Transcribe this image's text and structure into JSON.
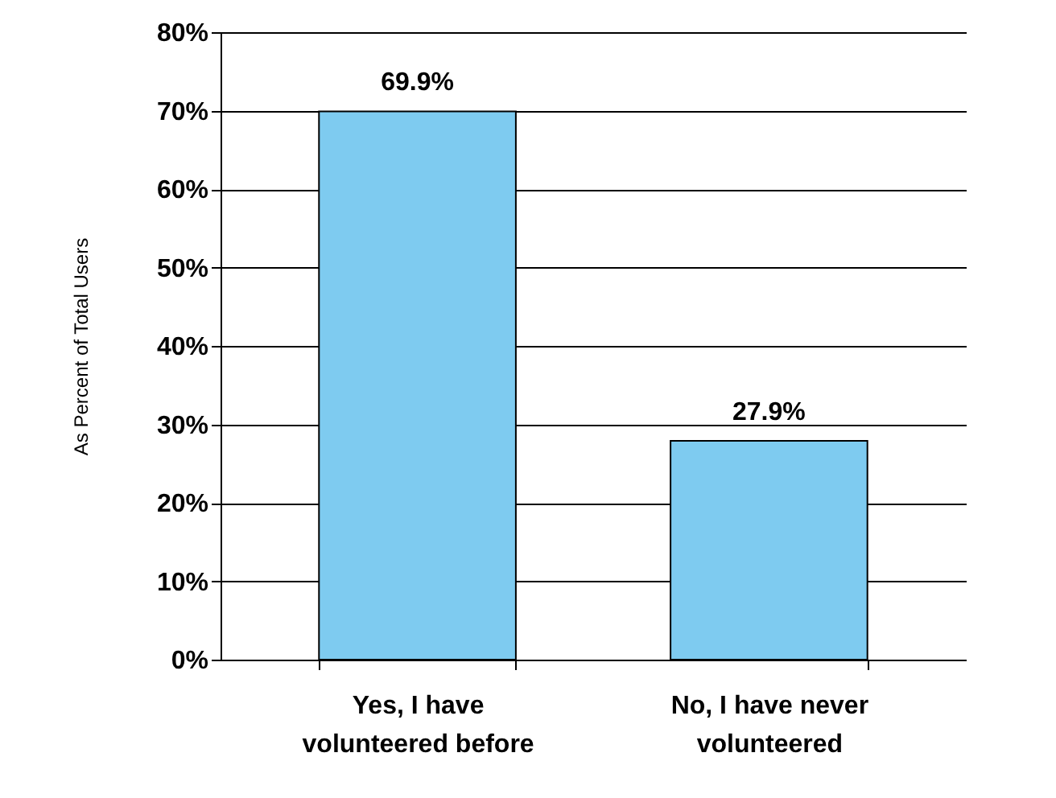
{
  "chart_data": {
    "type": "bar",
    "ylabel": "As Percent of Total Users",
    "categories": [
      "Yes, I have volunteered before",
      "No, I have never volunteered"
    ],
    "values": [
      69.9,
      27.9
    ],
    "color": "#7ecbf0",
    "value_labels": [
      "69.9%",
      "27.9%"
    ],
    "ylim": [
      0,
      80
    ],
    "yticks": [
      {
        "value": 0,
        "label": "0%"
      },
      {
        "value": 10,
        "label": "10%"
      },
      {
        "value": 20,
        "label": "20%"
      },
      {
        "value": 30,
        "label": "30%"
      },
      {
        "value": 40,
        "label": "40%"
      },
      {
        "value": 50,
        "label": "50%"
      },
      {
        "value": 60,
        "label": "60%"
      },
      {
        "value": 70,
        "label": "70%"
      },
      {
        "value": 80,
        "label": "80%"
      }
    ],
    "grid": "y"
  }
}
